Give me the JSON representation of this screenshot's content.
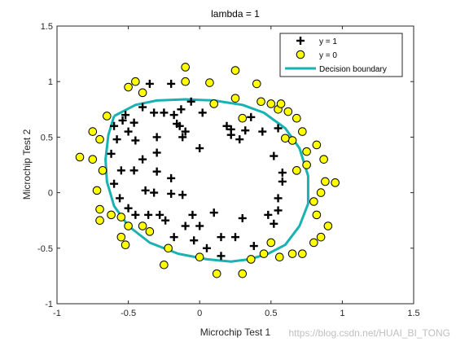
{
  "chart_data": {
    "type": "scatter",
    "title": "lambda = 1",
    "xlabel": "Microchip Test 1",
    "ylabel": "Microchip Test 2",
    "xlim": [
      -1,
      1.5
    ],
    "ylim": [
      -1,
      1.5
    ],
    "xticks": [
      -1,
      -0.5,
      0,
      0.5,
      1,
      1.5
    ],
    "yticks": [
      -1,
      -0.5,
      0,
      0.5,
      1,
      1.5
    ],
    "xtick_labels": [
      "-1",
      "-0.5",
      "0",
      "0.5",
      "1",
      "1.5"
    ],
    "ytick_labels": [
      "-1",
      "-0.5",
      "0",
      "0.5",
      "1",
      "1.5"
    ],
    "grid": false,
    "legend_position": "top-right",
    "series": [
      {
        "name": "y = 1",
        "marker": "plus",
        "color": "#000000",
        "points": [
          [
            -0.35,
            0.98
          ],
          [
            -0.2,
            0.98
          ],
          [
            -0.13,
            0.75
          ],
          [
            -0.06,
            0.82
          ],
          [
            0.02,
            0.72
          ],
          [
            -0.4,
            0.77
          ],
          [
            -0.52,
            0.7
          ],
          [
            -0.32,
            0.72
          ],
          [
            -0.25,
            0.72
          ],
          [
            -0.18,
            0.7
          ],
          [
            -0.16,
            0.62
          ],
          [
            -0.14,
            0.6
          ],
          [
            -0.1,
            0.55
          ],
          [
            -0.54,
            0.65
          ],
          [
            -0.46,
            0.63
          ],
          [
            -0.6,
            0.6
          ],
          [
            -0.5,
            0.55
          ],
          [
            0.19,
            0.6
          ],
          [
            0.22,
            0.57
          ],
          [
            0.22,
            0.52
          ],
          [
            0.32,
            0.56
          ],
          [
            0.28,
            0.48
          ],
          [
            0.36,
            0.68
          ],
          [
            0.44,
            0.55
          ],
          [
            0.55,
            0.58
          ],
          [
            -0.12,
            0.5
          ],
          [
            -0.3,
            0.5
          ],
          [
            -0.45,
            0.47
          ],
          [
            -0.58,
            0.48
          ],
          [
            -0.62,
            0.35
          ],
          [
            -0.3,
            0.36
          ],
          [
            -0.4,
            0.3
          ],
          [
            -0.55,
            0.2
          ],
          [
            -0.46,
            0.2
          ],
          [
            -0.3,
            0.19
          ],
          [
            0.0,
            0.4
          ],
          [
            -0.2,
            0.13
          ],
          [
            -0.6,
            0.08
          ],
          [
            -0.38,
            0.02
          ],
          [
            -0.32,
            0.0
          ],
          [
            -0.2,
            -0.01
          ],
          [
            -0.12,
            -0.02
          ],
          [
            -0.56,
            -0.05
          ],
          [
            -0.5,
            -0.14
          ],
          [
            -0.45,
            -0.2
          ],
          [
            -0.36,
            -0.2
          ],
          [
            -0.28,
            -0.2
          ],
          [
            -0.24,
            -0.25
          ],
          [
            -0.05,
            -0.2
          ],
          [
            0.1,
            -0.18
          ],
          [
            -0.1,
            -0.3
          ],
          [
            0.0,
            -0.3
          ],
          [
            0.3,
            -0.23
          ],
          [
            0.48,
            -0.2
          ],
          [
            0.52,
            -0.28
          ],
          [
            0.55,
            -0.05
          ],
          [
            0.55,
            -0.16
          ],
          [
            0.58,
            0.1
          ],
          [
            0.52,
            0.33
          ],
          [
            0.58,
            0.18
          ],
          [
            -0.18,
            -0.4
          ],
          [
            -0.04,
            -0.43
          ],
          [
            0.15,
            -0.4
          ],
          [
            0.25,
            -0.4
          ],
          [
            0.38,
            -0.48
          ],
          [
            0.05,
            -0.5
          ],
          [
            0.15,
            -0.57
          ]
        ]
      },
      {
        "name": "y = 0",
        "marker": "circle",
        "color": "#ffff00",
        "points": [
          [
            -0.1,
            1.13
          ],
          [
            0.07,
            0.99
          ],
          [
            0.25,
            1.1
          ],
          [
            0.43,
            0.82
          ],
          [
            0.5,
            0.8
          ],
          [
            -0.4,
            0.9
          ],
          [
            -0.5,
            0.95
          ],
          [
            -0.45,
            1.0
          ],
          [
            -0.65,
            0.69
          ],
          [
            -0.7,
            0.48
          ],
          [
            -0.75,
            0.55
          ],
          [
            -0.84,
            0.32
          ],
          [
            -0.75,
            0.3
          ],
          [
            -0.68,
            0.2
          ],
          [
            -0.72,
            0.02
          ],
          [
            -0.7,
            -0.15
          ],
          [
            -0.7,
            -0.25
          ],
          [
            -0.62,
            -0.2
          ],
          [
            -0.55,
            -0.22
          ],
          [
            -0.5,
            -0.3
          ],
          [
            -0.4,
            -0.3
          ],
          [
            -0.35,
            -0.35
          ],
          [
            -0.55,
            -0.4
          ],
          [
            -0.52,
            -0.47
          ],
          [
            -0.22,
            -0.5
          ],
          [
            -0.25,
            -0.65
          ],
          [
            0.0,
            -0.58
          ],
          [
            0.12,
            -0.73
          ],
          [
            0.3,
            -0.73
          ],
          [
            0.36,
            -0.6
          ],
          [
            0.45,
            -0.55
          ],
          [
            0.5,
            -0.45
          ],
          [
            0.56,
            -0.58
          ],
          [
            0.65,
            -0.55
          ],
          [
            0.72,
            -0.55
          ],
          [
            0.8,
            -0.45
          ],
          [
            0.85,
            -0.4
          ],
          [
            0.9,
            -0.3
          ],
          [
            0.82,
            -0.2
          ],
          [
            0.8,
            -0.08
          ],
          [
            0.85,
            0.0
          ],
          [
            0.88,
            0.1
          ],
          [
            0.95,
            0.09
          ],
          [
            0.87,
            0.3
          ],
          [
            0.75,
            0.37
          ],
          [
            0.65,
            0.47
          ],
          [
            0.6,
            0.49
          ],
          [
            0.72,
            0.55
          ],
          [
            0.68,
            0.67
          ],
          [
            0.62,
            0.73
          ],
          [
            0.55,
            0.75
          ],
          [
            0.4,
            0.98
          ],
          [
            0.3,
            0.67
          ],
          [
            0.1,
            0.8
          ],
          [
            -0.1,
            1.0
          ],
          [
            0.57,
            0.8
          ],
          [
            0.82,
            0.43
          ],
          [
            0.75,
            0.25
          ],
          [
            0.68,
            0.2
          ],
          [
            0.25,
            0.85
          ]
        ]
      },
      {
        "name": "Decision boundary",
        "marker": "line",
        "color": "#19b2b2",
        "points": [
          [
            -0.6,
            0.69
          ],
          [
            -0.45,
            0.79
          ],
          [
            -0.3,
            0.83
          ],
          [
            -0.1,
            0.84
          ],
          [
            0.1,
            0.83
          ],
          [
            0.3,
            0.79
          ],
          [
            0.45,
            0.72
          ],
          [
            0.6,
            0.58
          ],
          [
            0.7,
            0.4
          ],
          [
            0.76,
            0.15
          ],
          [
            0.76,
            -0.1
          ],
          [
            0.7,
            -0.3
          ],
          [
            0.6,
            -0.47
          ],
          [
            0.48,
            -0.55
          ],
          [
            0.35,
            -0.6
          ],
          [
            0.22,
            -0.62
          ],
          [
            0.05,
            -0.6
          ],
          [
            -0.15,
            -0.55
          ],
          [
            -0.35,
            -0.45
          ],
          [
            -0.5,
            -0.3
          ],
          [
            -0.6,
            -0.12
          ],
          [
            -0.65,
            0.1
          ],
          [
            -0.66,
            0.3
          ],
          [
            -0.64,
            0.52
          ],
          [
            -0.6,
            0.69
          ]
        ]
      }
    ]
  },
  "watermark": "https://blog.csdn.net/HUAI_BI_TONG"
}
